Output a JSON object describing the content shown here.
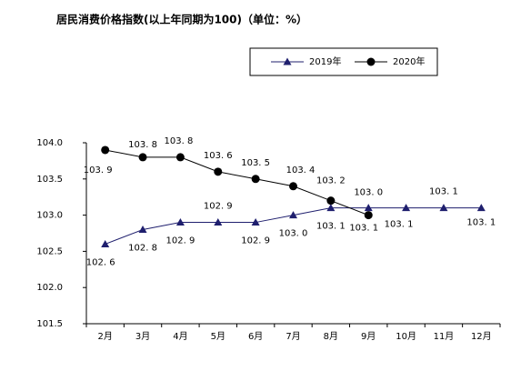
{
  "chart_data": {
    "type": "line",
    "title": "居民消费价格指数(以上年同期为100)（单位：%）",
    "categories": [
      "2月",
      "3月",
      "4月",
      "5月",
      "6月",
      "7月",
      "8月",
      "9月",
      "10月",
      "11月",
      "12月"
    ],
    "series": [
      {
        "name": "2019年",
        "color": "#1f1f6e",
        "marker": "triangle",
        "values": [
          102.6,
          102.8,
          102.9,
          102.9,
          102.9,
          103.0,
          103.1,
          103.1,
          103.1,
          103.1,
          103.1
        ],
        "value_labels": [
          "102. 6",
          "102. 8",
          "102. 9",
          "102. 9",
          "102. 9",
          "103. 0",
          "103. 1",
          "103. 1",
          "103. 1",
          "103. 1",
          "103. 1"
        ]
      },
      {
        "name": "2020年",
        "color": "#000000",
        "marker": "circle",
        "values": [
          103.9,
          103.8,
          103.8,
          103.6,
          103.5,
          103.4,
          103.2,
          103.0,
          null,
          null,
          null
        ],
        "value_labels": [
          "103. 9",
          "103. 8",
          "103. 8",
          "103. 6",
          "103. 5",
          "103. 4",
          "103. 2",
          "103. 0",
          null,
          null,
          null
        ]
      }
    ],
    "ylim": [
      101.5,
      104.0
    ],
    "yticks": [
      {
        "value": 101.5,
        "label": "101.5"
      },
      {
        "value": 102.0,
        "label": "102.0"
      },
      {
        "value": 102.5,
        "label": "102.5"
      },
      {
        "value": 103.0,
        "label": "103.0"
      },
      {
        "value": 103.5,
        "label": "103.5"
      },
      {
        "value": 104.0,
        "label": "104.0"
      }
    ],
    "grid": false,
    "legend": "top"
  }
}
